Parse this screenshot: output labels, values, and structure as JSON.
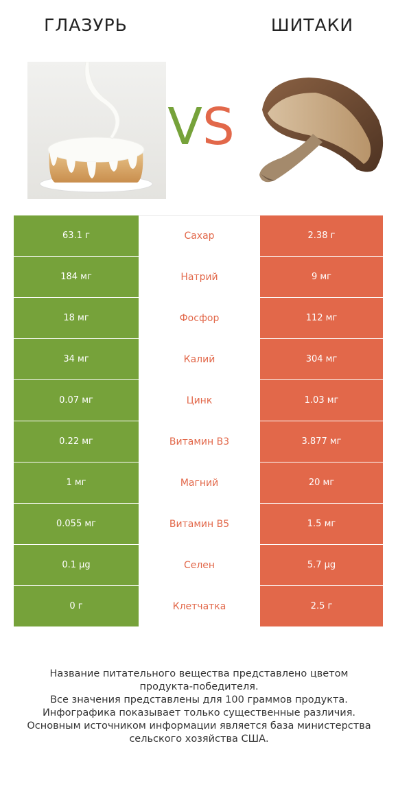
{
  "header": {
    "left_title": "ГЛАЗУРЬ",
    "right_title": "ШИТАКИ",
    "vs_v": "V",
    "vs_s": "S"
  },
  "colors": {
    "winner_left": "#76a23a",
    "winner_right": "#e2684a"
  },
  "images": {
    "left": "glaze-cake-image",
    "right": "shiitake-mushroom-image"
  },
  "rows": [
    {
      "left": "63.1 г",
      "name": "Сахар",
      "right": "2.38 г"
    },
    {
      "left": "184 мг",
      "name": "Натрий",
      "right": "9 мг"
    },
    {
      "left": "18 мг",
      "name": "Фосфор",
      "right": "112 мг"
    },
    {
      "left": "34 мг",
      "name": "Калий",
      "right": "304 мг"
    },
    {
      "left": "0.07 мг",
      "name": "Цинк",
      "right": "1.03 мг"
    },
    {
      "left": "0.22 мг",
      "name": "Витамин B3",
      "right": "3.877 мг"
    },
    {
      "left": "1 мг",
      "name": "Магний",
      "right": "20 мг"
    },
    {
      "left": "0.055 мг",
      "name": "Витамин B5",
      "right": "1.5 мг"
    },
    {
      "left": "0.1 µg",
      "name": "Селен",
      "right": "5.7 µg"
    },
    {
      "left": "0 г",
      "name": "Клетчатка",
      "right": "2.5 г"
    }
  ],
  "footer": {
    "line1": "Название питательного вещества представлено цветом",
    "line2": "продукта-победителя.",
    "line3": "Все значения представлены для 100 граммов продукта.",
    "line4": "Инфографика показывает только существенные различия.",
    "line5": "Основным источником информации является база министерства",
    "line6": "сельского хозяйства США."
  }
}
